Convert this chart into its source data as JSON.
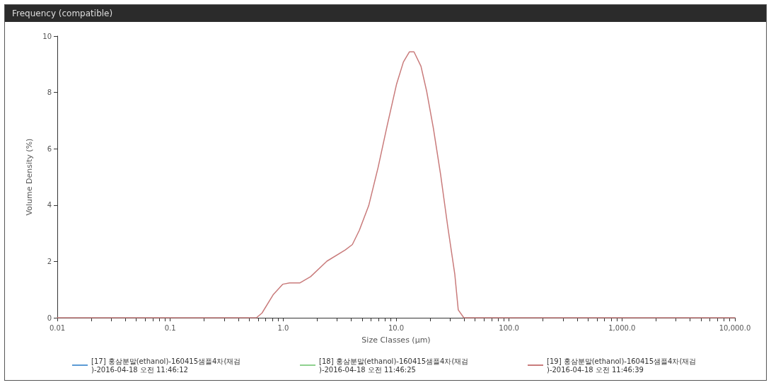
{
  "chart_data": {
    "type": "line",
    "title": "Frequency (compatible)",
    "xlabel": "Size Classes (μm)",
    "ylabel": "Volume Density (%)",
    "x": [
      0.01,
      0.1,
      0.5,
      0.58,
      0.65,
      0.82,
      0.99,
      1.14,
      1.41,
      1.75,
      2.44,
      3.55,
      4.1,
      4.73,
      5.72,
      6.92,
      8.33,
      10.1,
      11.6,
      13.1,
      14.4,
      16.6,
      18.6,
      21.4,
      24.8,
      28.6,
      33.1,
      35.5,
      39.8,
      100,
      1000,
      10000
    ],
    "series": [
      {
        "name": "[17] 홍삼분말(ethanol)-160415샘플4차(재검)-2016-04-18 오전 11:46:12",
        "color": "#5b9bd5",
        "values": [
          null,
          null,
          null,
          null,
          null,
          null,
          null,
          null,
          null,
          null,
          null,
          null,
          null,
          null,
          null,
          null,
          null,
          null,
          null,
          null,
          null,
          null,
          null,
          null,
          null,
          null,
          null,
          null,
          null,
          null,
          null,
          null
        ]
      },
      {
        "name": "[18] 홍삼분말(ethanol)-160415샘플4차(재검)-2016-04-18 오전 11:46:25",
        "color": "#8fd18f",
        "values": [
          null,
          null,
          null,
          null,
          null,
          null,
          null,
          null,
          null,
          null,
          null,
          null,
          null,
          null,
          null,
          null,
          null,
          null,
          null,
          null,
          null,
          null,
          null,
          null,
          null,
          null,
          null,
          null,
          null,
          null,
          null,
          null
        ]
      },
      {
        "name": "[19] 홍삼분말(ethanol)-160415샘플4차(재검)-2016-04-18 오전 11:46:39",
        "color": "#c97b7b",
        "values": [
          0,
          0,
          0,
          0,
          0.17,
          0.83,
          1.19,
          1.24,
          1.24,
          1.46,
          2.01,
          2.41,
          2.6,
          3.11,
          3.98,
          5.33,
          6.82,
          8.3,
          9.08,
          9.44,
          9.44,
          8.93,
          8.06,
          6.72,
          5.07,
          3.26,
          1.54,
          0.28,
          0,
          0,
          0,
          0
        ]
      }
    ],
    "log": "x",
    "xlim": [
      0.01,
      10000
    ],
    "xticks": [
      0.01,
      {
        "value": 0.02,
        "label": null
      },
      {
        "value": 0.03,
        "label": null
      },
      {
        "value": 0.04,
        "label": null
      },
      {
        "value": 0.05,
        "label": null
      },
      {
        "value": 0.06,
        "label": null
      },
      {
        "value": 0.07,
        "label": null
      },
      {
        "value": 0.08,
        "label": null
      },
      {
        "value": 0.09,
        "label": null
      },
      0.1,
      {
        "value": 0.2,
        "label": null
      },
      {
        "value": 0.3,
        "label": null
      },
      {
        "value": 0.4,
        "label": null
      },
      {
        "value": 0.5,
        "label": null
      },
      {
        "value": 0.6,
        "label": null
      },
      {
        "value": 0.7,
        "label": null
      },
      {
        "value": 0.8,
        "label": null
      },
      {
        "value": 0.9,
        "label": null
      },
      {
        "value": 1,
        "label": "1.0"
      },
      {
        "value": 2,
        "label": null
      },
      {
        "value": 3,
        "label": null
      },
      {
        "value": 4,
        "label": null
      },
      {
        "value": 5,
        "label": null
      },
      {
        "value": 6,
        "label": null
      },
      {
        "value": 7,
        "label": null
      },
      {
        "value": 8,
        "label": null
      },
      {
        "value": 9,
        "label": null
      },
      {
        "value": 10,
        "label": "10.0"
      },
      {
        "value": 20,
        "label": null
      },
      {
        "value": 30,
        "label": null
      },
      {
        "value": 40,
        "label": null
      },
      {
        "value": 50,
        "label": null
      },
      {
        "value": 60,
        "label": null
      },
      {
        "value": 70,
        "label": null
      },
      {
        "value": 80,
        "label": null
      },
      {
        "value": 90,
        "label": null
      },
      {
        "value": 100,
        "label": "100.0"
      },
      {
        "value": 200,
        "label": null
      },
      {
        "value": 300,
        "label": null
      },
      {
        "value": 400,
        "label": null
      },
      {
        "value": 500,
        "label": null
      },
      {
        "value": 600,
        "label": null
      },
      {
        "value": 700,
        "label": null
      },
      {
        "value": 800,
        "label": null
      },
      {
        "value": 900,
        "label": null
      },
      {
        "value": 1000,
        "label": "1,000.0"
      },
      {
        "value": 2000,
        "label": null
      },
      {
        "value": 3000,
        "label": null
      },
      {
        "value": 4000,
        "label": null
      },
      {
        "value": 5000,
        "label": null
      },
      {
        "value": 6000,
        "label": null
      },
      {
        "value": 7000,
        "label": null
      },
      {
        "value": 8000,
        "label": null
      },
      {
        "value": 9000,
        "label": null
      },
      {
        "value": 10000,
        "label": "10,000.0"
      }
    ],
    "ylim": [
      0,
      10
    ],
    "yticks": [
      0,
      2,
      4,
      6,
      8,
      10
    ],
    "grid": false,
    "legend": "bottom",
    "marker": "none",
    "line_style": "solid"
  }
}
